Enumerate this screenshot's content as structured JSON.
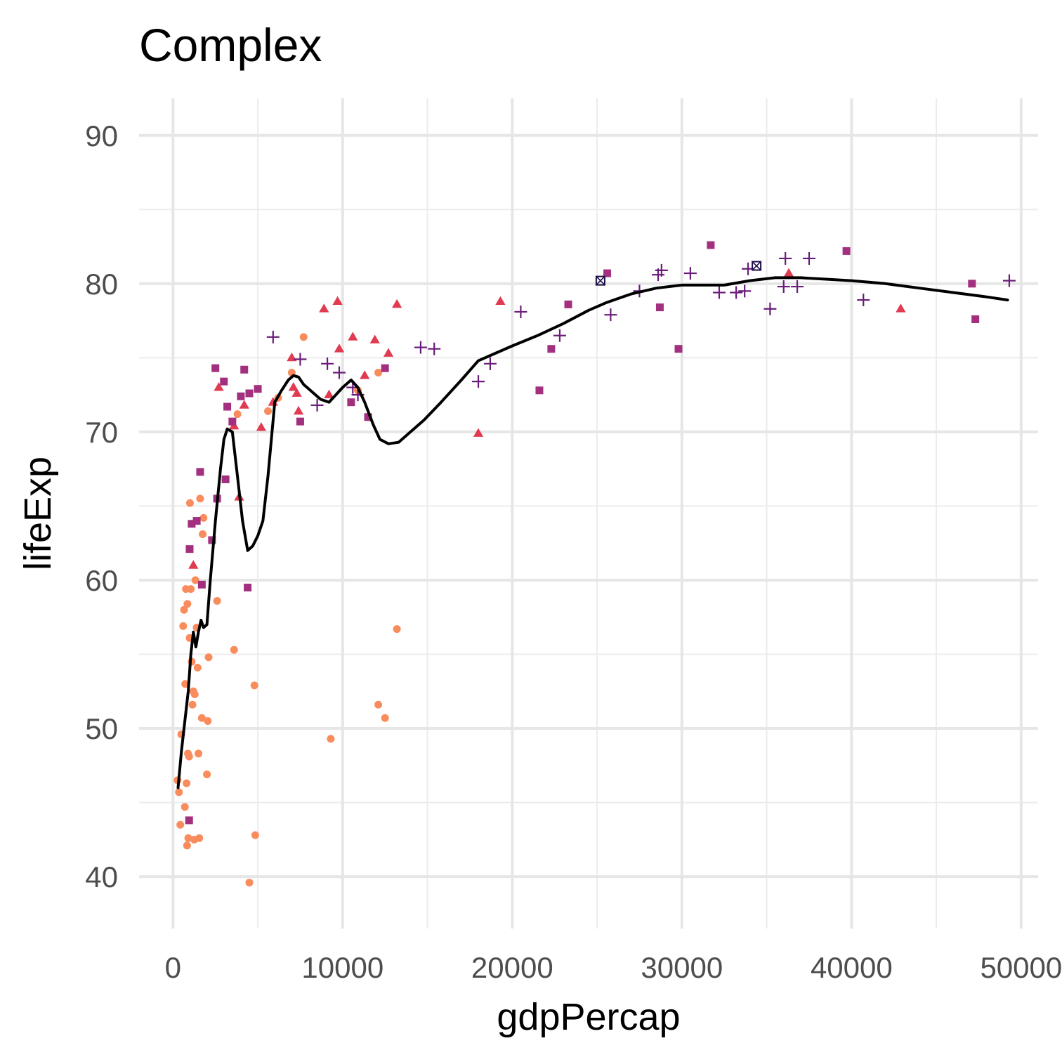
{
  "chart_data": {
    "type": "scatter",
    "title": "Complex",
    "xlabel": "gdpPercap",
    "ylabel": "lifeExp",
    "xlim": [
      -2000,
      51000
    ],
    "ylim": [
      36.5,
      92.5
    ],
    "x_ticks": [
      0,
      10000,
      20000,
      30000,
      40000,
      50000
    ],
    "y_ticks": [
      40,
      50,
      60,
      70,
      80,
      90
    ],
    "x_tick_labels": [
      "0",
      "10000",
      "20000",
      "30000",
      "40000",
      "50000"
    ],
    "y_tick_labels": [
      "40",
      "50",
      "60",
      "70",
      "80",
      "90"
    ],
    "grid": true,
    "legend": "none",
    "series": [
      {
        "shape": "circle",
        "color": "#F98C5C",
        "points": [
          [
            270,
            46.5
          ],
          [
            350,
            45.7
          ],
          [
            430,
            43.5
          ],
          [
            490,
            49.6
          ],
          [
            600,
            56.9
          ],
          [
            650,
            58.0
          ],
          [
            700,
            44.7
          ],
          [
            720,
            53.0
          ],
          [
            760,
            59.4
          ],
          [
            800,
            46.3
          ],
          [
            830,
            42.1
          ],
          [
            850,
            58.4
          ],
          [
            880,
            48.3
          ],
          [
            900,
            42.6
          ],
          [
            950,
            48.1
          ],
          [
            980,
            56.1
          ],
          [
            1000,
            65.2
          ],
          [
            1050,
            59.4
          ],
          [
            1100,
            54.5
          ],
          [
            1150,
            51.6
          ],
          [
            1200,
            52.5
          ],
          [
            1250,
            42.5
          ],
          [
            1280,
            52.3
          ],
          [
            1320,
            60.0
          ],
          [
            1400,
            56.8
          ],
          [
            1450,
            54.1
          ],
          [
            1500,
            48.3
          ],
          [
            1550,
            42.6
          ],
          [
            1600,
            65.5
          ],
          [
            1700,
            50.7
          ],
          [
            1750,
            63.1
          ],
          [
            1800,
            64.2
          ],
          [
            2000,
            46.9
          ],
          [
            2050,
            50.5
          ],
          [
            2100,
            54.8
          ],
          [
            2600,
            58.6
          ],
          [
            3600,
            55.3
          ],
          [
            3800,
            71.2
          ],
          [
            4500,
            39.6
          ],
          [
            4800,
            52.9
          ],
          [
            4850,
            42.8
          ],
          [
            5600,
            71.4
          ],
          [
            6200,
            72.3
          ],
          [
            7000,
            74.0
          ],
          [
            7700,
            76.4
          ],
          [
            9300,
            49.3
          ],
          [
            10900,
            72.8
          ],
          [
            12100,
            74.0
          ],
          [
            12100,
            51.6
          ],
          [
            12500,
            50.7
          ],
          [
            13200,
            56.7
          ]
        ]
      },
      {
        "shape": "triangle",
        "color": "#E03B50",
        "points": [
          [
            1200,
            61.0
          ],
          [
            2700,
            73.0
          ],
          [
            3600,
            70.4
          ],
          [
            3900,
            65.6
          ],
          [
            4200,
            71.8
          ],
          [
            5200,
            70.3
          ],
          [
            5900,
            72.0
          ],
          [
            7000,
            75.0
          ],
          [
            7100,
            73.0
          ],
          [
            7300,
            72.6
          ],
          [
            7400,
            71.4
          ],
          [
            8900,
            78.3
          ],
          [
            9200,
            72.5
          ],
          [
            9700,
            78.8
          ],
          [
            9800,
            75.6
          ],
          [
            10600,
            76.4
          ],
          [
            11300,
            73.8
          ],
          [
            11900,
            76.2
          ],
          [
            12700,
            75.3
          ],
          [
            13200,
            78.6
          ],
          [
            18000,
            69.9
          ],
          [
            19300,
            78.8
          ],
          [
            36300,
            80.7
          ],
          [
            42900,
            78.3
          ]
        ]
      },
      {
        "shape": "square",
        "color": "#A3307E",
        "points": [
          [
            950,
            43.8
          ],
          [
            980,
            62.1
          ],
          [
            1100,
            63.8
          ],
          [
            1400,
            64.0
          ],
          [
            1600,
            67.3
          ],
          [
            1700,
            59.7
          ],
          [
            2300,
            62.7
          ],
          [
            2500,
            74.3
          ],
          [
            2600,
            65.5
          ],
          [
            3000,
            73.4
          ],
          [
            3100,
            66.8
          ],
          [
            3200,
            71.7
          ],
          [
            3500,
            70.7
          ],
          [
            4000,
            72.4
          ],
          [
            4200,
            74.2
          ],
          [
            4400,
            59.5
          ],
          [
            4500,
            72.6
          ],
          [
            5000,
            72.9
          ],
          [
            7500,
            70.7
          ],
          [
            10500,
            72.0
          ],
          [
            11500,
            71.0
          ],
          [
            12500,
            74.3
          ],
          [
            21600,
            72.8
          ],
          [
            22300,
            75.6
          ],
          [
            23300,
            78.6
          ],
          [
            25600,
            80.7
          ],
          [
            28700,
            78.4
          ],
          [
            29800,
            75.6
          ],
          [
            31700,
            82.6
          ],
          [
            39700,
            82.2
          ],
          [
            47100,
            80.0
          ],
          [
            47300,
            77.6
          ]
        ]
      },
      {
        "shape": "plus",
        "color": "#6A1C79",
        "points": [
          [
            5900,
            76.4
          ],
          [
            7500,
            74.9
          ],
          [
            8500,
            71.8
          ],
          [
            9100,
            74.6
          ],
          [
            9800,
            74.0
          ],
          [
            10600,
            73.0
          ],
          [
            10900,
            72.5
          ],
          [
            14600,
            75.7
          ],
          [
            15400,
            75.6
          ],
          [
            18000,
            73.4
          ],
          [
            18700,
            74.6
          ],
          [
            20500,
            78.1
          ],
          [
            22800,
            76.5
          ],
          [
            25800,
            77.9
          ],
          [
            27500,
            79.5
          ],
          [
            28600,
            80.6
          ],
          [
            28800,
            80.9
          ],
          [
            30500,
            80.7
          ],
          [
            32200,
            79.4
          ],
          [
            33200,
            79.4
          ],
          [
            33700,
            79.5
          ],
          [
            33900,
            81.0
          ],
          [
            35200,
            78.3
          ],
          [
            36000,
            79.8
          ],
          [
            36100,
            81.7
          ],
          [
            36800,
            79.8
          ],
          [
            37500,
            81.7
          ],
          [
            40700,
            78.9
          ],
          [
            49300,
            80.2
          ]
        ]
      },
      {
        "shape": "square-cross",
        "color": "#1F0F4A",
        "points": [
          [
            25200,
            80.2
          ],
          [
            34400,
            81.2
          ]
        ]
      }
    ],
    "smooth_line": {
      "color": "#000000",
      "points": [
        [
          300,
          46.0
        ],
        [
          500,
          48.5
        ],
        [
          700,
          50.5
        ],
        [
          900,
          52.5
        ],
        [
          1050,
          55.0
        ],
        [
          1200,
          56.5
        ],
        [
          1350,
          55.5
        ],
        [
          1500,
          56.5
        ],
        [
          1650,
          57.3
        ],
        [
          1800,
          56.8
        ],
        [
          2000,
          57.0
        ],
        [
          2200,
          60.0
        ],
        [
          2500,
          64.0
        ],
        [
          2800,
          67.5
        ],
        [
          3000,
          69.5
        ],
        [
          3200,
          70.2
        ],
        [
          3500,
          70.0
        ],
        [
          3800,
          67.0
        ],
        [
          4100,
          64.0
        ],
        [
          4400,
          62.0
        ],
        [
          4700,
          62.3
        ],
        [
          5000,
          63.0
        ],
        [
          5300,
          64.0
        ],
        [
          5600,
          67.0
        ],
        [
          6000,
          72.0
        ],
        [
          6400,
          72.8
        ],
        [
          6800,
          73.5
        ],
        [
          7100,
          73.8
        ],
        [
          7400,
          73.7
        ],
        [
          7700,
          73.2
        ],
        [
          8200,
          72.7
        ],
        [
          8700,
          72.2
        ],
        [
          9200,
          72.0
        ],
        [
          9600,
          72.5
        ],
        [
          10000,
          73.0
        ],
        [
          10500,
          73.5
        ],
        [
          10900,
          73.0
        ],
        [
          11300,
          72.0
        ],
        [
          11800,
          70.5
        ],
        [
          12200,
          69.5
        ],
        [
          12700,
          69.2
        ],
        [
          13300,
          69.3
        ],
        [
          14000,
          70.0
        ],
        [
          14800,
          70.8
        ],
        [
          15800,
          72.0
        ],
        [
          17000,
          73.5
        ],
        [
          18000,
          74.8
        ],
        [
          19000,
          75.3
        ],
        [
          20000,
          75.8
        ],
        [
          21500,
          76.5
        ],
        [
          23000,
          77.3
        ],
        [
          24500,
          78.2
        ],
        [
          25500,
          78.7
        ],
        [
          27000,
          79.3
        ],
        [
          28500,
          79.7
        ],
        [
          30000,
          79.9
        ],
        [
          31500,
          79.9
        ],
        [
          32500,
          79.9
        ],
        [
          34000,
          80.2
        ],
        [
          35500,
          80.4
        ],
        [
          37000,
          80.4
        ],
        [
          38500,
          80.3
        ],
        [
          40000,
          80.2
        ],
        [
          42000,
          80.0
        ],
        [
          44000,
          79.7
        ],
        [
          46000,
          79.4
        ],
        [
          48000,
          79.1
        ],
        [
          49200,
          78.9
        ]
      ]
    }
  }
}
